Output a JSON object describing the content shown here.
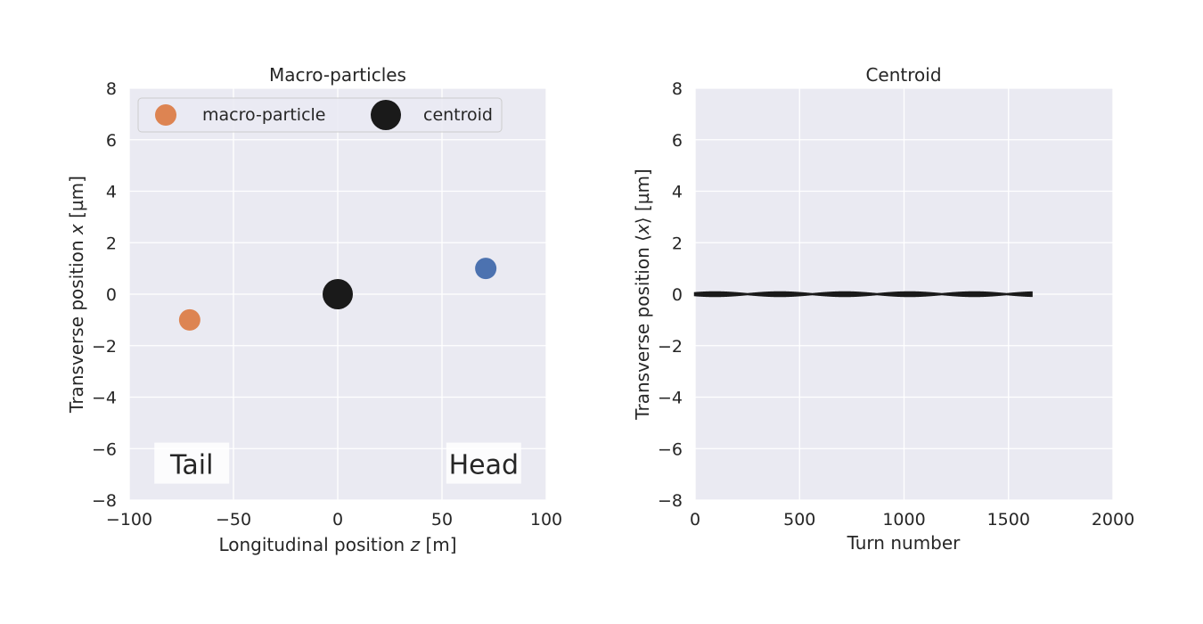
{
  "chart_data": [
    {
      "type": "scatter",
      "title": "Macro-particles",
      "xlabel_parts": [
        "Longitudinal position ",
        "z",
        " [m]"
      ],
      "ylabel_parts": [
        "Transverse position ",
        "x",
        " [µm]"
      ],
      "xlim": [
        -100,
        100
      ],
      "ylim": [
        -8,
        8
      ],
      "xticks": [
        -100,
        -50,
        0,
        50,
        100
      ],
      "xtick_labels": [
        "−100",
        "−50",
        "0",
        "50",
        "100"
      ],
      "yticks": [
        -8,
        -6,
        -4,
        -2,
        0,
        2,
        4,
        6,
        8
      ],
      "ytick_labels": [
        "−8",
        "−6",
        "−4",
        "−2",
        "0",
        "2",
        "4",
        "6",
        "8"
      ],
      "grid": true,
      "legend_placement": "top",
      "points": [
        {
          "name": "tail-particle",
          "x": -71,
          "y": -1,
          "color": "#dd8452"
        },
        {
          "name": "head-particle",
          "x": 71,
          "y": 1,
          "color": "#4c72b0"
        },
        {
          "name": "centroid-point",
          "x": 0,
          "y": 0,
          "color": "#1a1a1a"
        }
      ],
      "legend": [
        {
          "label": "macro-particle",
          "color": "#dd8452"
        },
        {
          "label": "centroid",
          "color": "#1a1a1a"
        }
      ],
      "annotations": [
        {
          "text": "Tail",
          "x": -70,
          "y": -6.6
        },
        {
          "text": "Head",
          "x": 70,
          "y": -6.6
        }
      ]
    },
    {
      "type": "line",
      "title": "Centroid",
      "xlabel": "Turn number",
      "ylabel_parts": [
        "Transverse position ⟨",
        "x",
        "⟩ [µm]"
      ],
      "xlim": [
        0,
        2000
      ],
      "ylim": [
        -8,
        8
      ],
      "xticks": [
        0,
        500,
        1000,
        1500,
        2000
      ],
      "xtick_labels": [
        "0",
        "500",
        "1000",
        "1500",
        "2000"
      ],
      "yticks": [
        -8,
        -6,
        -4,
        -2,
        0,
        2,
        4,
        6,
        8
      ],
      "ytick_labels": [
        "−8",
        "−6",
        "−4",
        "−2",
        "0",
        "2",
        "4",
        "6",
        "8"
      ],
      "grid": true,
      "series": [
        {
          "turn_start": 0,
          "turn_end": 1610,
          "amplitude": 0.07,
          "beat_period": 310,
          "color": "#1a1a1a"
        }
      ]
    }
  ],
  "style": {
    "plot_background": "#eaeaf2",
    "grid_color": "#ffffff",
    "text_color": "#262626"
  }
}
